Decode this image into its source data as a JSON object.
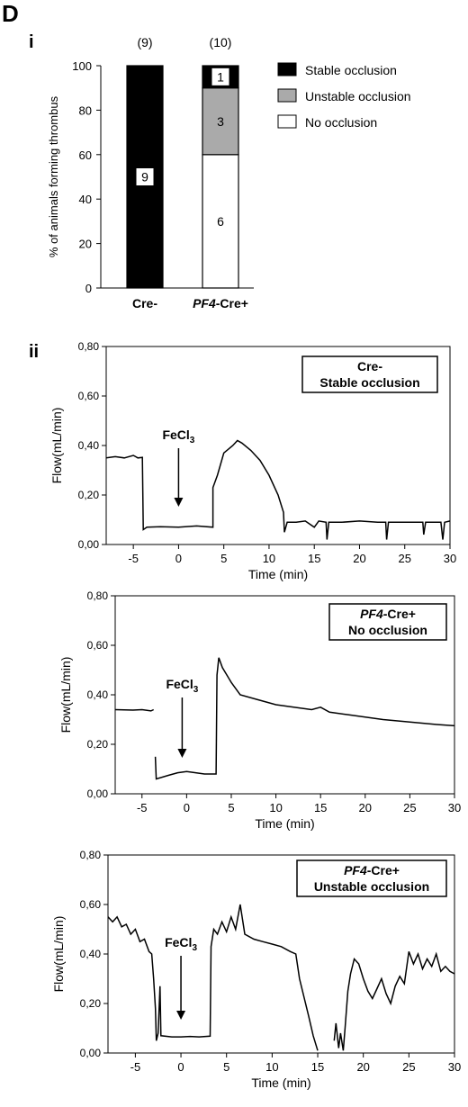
{
  "panel_label": "D",
  "subpanel_i": "i",
  "subpanel_ii": "ii",
  "chart_data": [
    {
      "type": "bar",
      "stacked": true,
      "categories": [
        "Cre-",
        "PF4-Cre+"
      ],
      "category_prefix_italic": [
        "",
        "PF4"
      ],
      "category_suffix": [
        "Cre-",
        "-Cre+"
      ],
      "top_counts": [
        "(9)",
        "(10)"
      ],
      "ylabel": "% of animals forming thrombus",
      "ylim": [
        0,
        100
      ],
      "yticks": [
        0,
        20,
        40,
        60,
        80,
        100
      ],
      "series": [
        {
          "name": "No occlusion",
          "color": "#ffffff",
          "values": [
            0,
            60
          ],
          "labels": [
            "",
            "6"
          ]
        },
        {
          "name": "Unstable occlusion",
          "color": "#aaaaaa",
          "values": [
            0,
            30
          ],
          "labels": [
            "",
            "3"
          ]
        },
        {
          "name": "Stable occlusion",
          "color": "#000000",
          "values": [
            100,
            10
          ],
          "labels": [
            "9",
            "1"
          ]
        }
      ],
      "legend_order": [
        "Stable occlusion",
        "Unstable occlusion",
        "No occlusion"
      ],
      "legend_position": "right"
    },
    {
      "type": "line",
      "box_line1_italic": "",
      "box_line1": "Cre-",
      "box_line2": "Stable occlusion",
      "annotation": "FeCl",
      "annotation_sub": "3",
      "annotation_x": 0,
      "ylabel": "Flow(mL/min)",
      "xlabel": "Time (min)",
      "xlim": [
        -8,
        30
      ],
      "ylim": [
        0,
        0.8
      ],
      "xticks": [
        -5,
        0,
        5,
        10,
        15,
        20,
        25,
        30
      ],
      "yticks": [
        "0,00",
        "0,20",
        "0,40",
        "0,60",
        "0,80"
      ],
      "segments": [
        [
          [
            -8,
            0.35
          ],
          [
            -7,
            0.355
          ],
          [
            -6,
            0.35
          ],
          [
            -5,
            0.36
          ],
          [
            -4.5,
            0.35
          ],
          [
            -4.0,
            0.352
          ],
          [
            -3.9,
            0.06
          ],
          [
            -3.5,
            0.07
          ],
          [
            -2,
            0.072
          ],
          [
            0,
            0.07
          ],
          [
            2,
            0.075
          ],
          [
            3.8,
            0.07
          ],
          [
            3.8,
            0.23
          ],
          [
            4.3,
            0.28
          ],
          [
            5,
            0.37
          ],
          [
            6,
            0.4
          ],
          [
            6.5,
            0.42
          ],
          [
            7,
            0.41
          ],
          [
            8,
            0.38
          ],
          [
            9,
            0.34
          ],
          [
            10,
            0.28
          ],
          [
            11,
            0.2
          ],
          [
            11.6,
            0.13
          ],
          [
            11.7,
            0.05
          ],
          [
            12,
            0.09
          ],
          [
            13,
            0.09
          ],
          [
            14,
            0.095
          ],
          [
            15,
            0.07
          ],
          [
            15.5,
            0.095
          ],
          [
            16.3,
            0.09
          ],
          [
            16.4,
            0.02
          ],
          [
            16.6,
            0.09
          ],
          [
            18,
            0.09
          ],
          [
            20,
            0.095
          ],
          [
            22,
            0.09
          ],
          [
            22.9,
            0.09
          ],
          [
            23.0,
            0.02
          ],
          [
            23.2,
            0.09
          ],
          [
            25,
            0.09
          ],
          [
            27,
            0.09
          ],
          [
            27.1,
            0.04
          ],
          [
            27.3,
            0.09
          ],
          [
            29,
            0.09
          ],
          [
            29.2,
            0.02
          ],
          [
            29.4,
            0.09
          ],
          [
            30,
            0.095
          ]
        ]
      ]
    },
    {
      "type": "line",
      "box_line1_italic": "PF4",
      "box_line1": "-Cre+",
      "box_line2": "No occlusion",
      "annotation": "FeCl",
      "annotation_sub": "3",
      "annotation_x": -0.5,
      "ylabel": "Flow(mL/min)",
      "xlabel": "Time (min)",
      "xlim": [
        -8,
        30
      ],
      "ylim": [
        0,
        0.8
      ],
      "xticks": [
        -5,
        0,
        5,
        10,
        15,
        20,
        25,
        30
      ],
      "yticks": [
        "0,00",
        "0,20",
        "0,40",
        "0,60",
        "0,80"
      ],
      "segments": [
        [
          [
            -8,
            0.34
          ],
          [
            -6,
            0.338
          ],
          [
            -5,
            0.34
          ],
          [
            -4,
            0.335
          ],
          [
            -3.7,
            0.34
          ]
        ],
        [
          [
            -3.5,
            0.15
          ],
          [
            -3.4,
            0.06
          ],
          [
            -2,
            0.075
          ],
          [
            -1,
            0.085
          ],
          [
            0,
            0.09
          ],
          [
            1,
            0.085
          ],
          [
            2,
            0.08
          ],
          [
            3.3,
            0.08
          ],
          [
            3.4,
            0.48
          ],
          [
            3.6,
            0.55
          ],
          [
            4,
            0.51
          ],
          [
            5,
            0.45
          ],
          [
            6,
            0.4
          ],
          [
            8,
            0.38
          ],
          [
            10,
            0.36
          ],
          [
            12,
            0.35
          ],
          [
            14,
            0.34
          ],
          [
            15,
            0.35
          ],
          [
            16,
            0.33
          ],
          [
            18,
            0.32
          ],
          [
            20,
            0.31
          ],
          [
            22,
            0.3
          ],
          [
            25,
            0.29
          ],
          [
            28,
            0.28
          ],
          [
            30,
            0.275
          ]
        ]
      ]
    },
    {
      "type": "line",
      "box_line1_italic": "PF4",
      "box_line1": "-Cre+",
      "box_line2": "Unstable occlusion",
      "annotation": "FeCl",
      "annotation_sub": "3",
      "annotation_x": 0,
      "ylabel": "Flow(mL/min)",
      "xlabel": "Time (min)",
      "xlim": [
        -8,
        30
      ],
      "ylim": [
        0,
        0.8
      ],
      "xticks": [
        -5,
        0,
        5,
        10,
        15,
        20,
        25,
        30
      ],
      "yticks": [
        "0,00",
        "0,20",
        "0,40",
        "0,60",
        "0,80"
      ],
      "segments": [
        [
          [
            -8,
            0.55
          ],
          [
            -7.5,
            0.53
          ],
          [
            -7,
            0.55
          ],
          [
            -6.5,
            0.51
          ],
          [
            -6,
            0.52
          ],
          [
            -5.5,
            0.48
          ],
          [
            -5,
            0.5
          ],
          [
            -4.5,
            0.45
          ],
          [
            -4,
            0.46
          ],
          [
            -3.5,
            0.41
          ],
          [
            -3.2,
            0.4
          ],
          [
            -3.0,
            0.3
          ],
          [
            -2.8,
            0.18
          ],
          [
            -2.7,
            0.05
          ],
          [
            -2.5,
            0.08
          ],
          [
            -2.3,
            0.27
          ],
          [
            -2.2,
            0.07
          ],
          [
            -1,
            0.065
          ],
          [
            0,
            0.065
          ],
          [
            1,
            0.067
          ],
          [
            2,
            0.065
          ],
          [
            3.2,
            0.068
          ],
          [
            3.3,
            0.43
          ],
          [
            3.6,
            0.5
          ],
          [
            4,
            0.48
          ],
          [
            4.5,
            0.53
          ],
          [
            5,
            0.49
          ],
          [
            5.5,
            0.55
          ],
          [
            6,
            0.5
          ],
          [
            6.5,
            0.6
          ],
          [
            7,
            0.48
          ],
          [
            8,
            0.46
          ],
          [
            9,
            0.45
          ],
          [
            10,
            0.44
          ],
          [
            11,
            0.43
          ],
          [
            12,
            0.41
          ],
          [
            12.6,
            0.4
          ],
          [
            13,
            0.3
          ],
          [
            14,
            0.15
          ],
          [
            14.5,
            0.07
          ],
          [
            15,
            0.01
          ]
        ],
        [
          [
            16.8,
            0.05
          ],
          [
            17,
            0.12
          ],
          [
            17.3,
            0.02
          ],
          [
            17.5,
            0.08
          ],
          [
            17.8,
            0.01
          ],
          [
            18,
            0.1
          ],
          [
            18.3,
            0.25
          ],
          [
            18.6,
            0.32
          ],
          [
            19,
            0.38
          ],
          [
            19.5,
            0.36
          ],
          [
            20,
            0.3
          ],
          [
            20.5,
            0.25
          ],
          [
            21,
            0.22
          ],
          [
            21.5,
            0.26
          ],
          [
            22,
            0.3
          ],
          [
            22.5,
            0.24
          ],
          [
            23,
            0.2
          ],
          [
            23.5,
            0.27
          ],
          [
            24,
            0.31
          ],
          [
            24.5,
            0.28
          ],
          [
            25,
            0.41
          ],
          [
            25.5,
            0.36
          ],
          [
            26,
            0.4
          ],
          [
            26.5,
            0.34
          ],
          [
            27,
            0.38
          ],
          [
            27.5,
            0.35
          ],
          [
            28,
            0.4
          ],
          [
            28.5,
            0.33
          ],
          [
            29,
            0.35
          ],
          [
            29.5,
            0.33
          ],
          [
            30,
            0.32
          ]
        ]
      ]
    }
  ]
}
